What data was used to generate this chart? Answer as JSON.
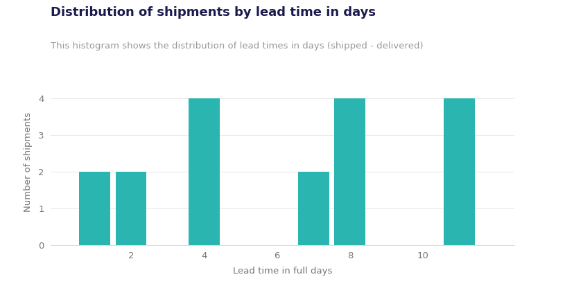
{
  "bar_positions": [
    1,
    2,
    4,
    7,
    8,
    11
  ],
  "bar_heights": [
    2,
    2,
    4,
    2,
    4,
    4
  ],
  "bar_color": "#2ab5b0",
  "bar_width": 0.85,
  "title": "Distribution of shipments by lead time in days",
  "subtitle": "This histogram shows the distribution of lead times in days (shipped - delivered)",
  "xlabel": "Lead time in full days",
  "ylabel": "Number of shipments",
  "xticks": [
    2,
    4,
    6,
    8,
    10
  ],
  "yticks": [
    0,
    1,
    2,
    3,
    4
  ],
  "xlim": [
    -0.2,
    12.5
  ],
  "ylim": [
    0,
    4.5
  ],
  "title_fontsize": 13,
  "subtitle_fontsize": 9.5,
  "axis_label_fontsize": 9.5,
  "tick_fontsize": 9.5,
  "title_color": "#1a1a4e",
  "subtitle_color": "#999999",
  "axis_label_color": "#777777",
  "tick_color": "#777777",
  "background_color": "#ffffff",
  "grid_color": "#e8e8e8",
  "spine_color": "#dddddd"
}
